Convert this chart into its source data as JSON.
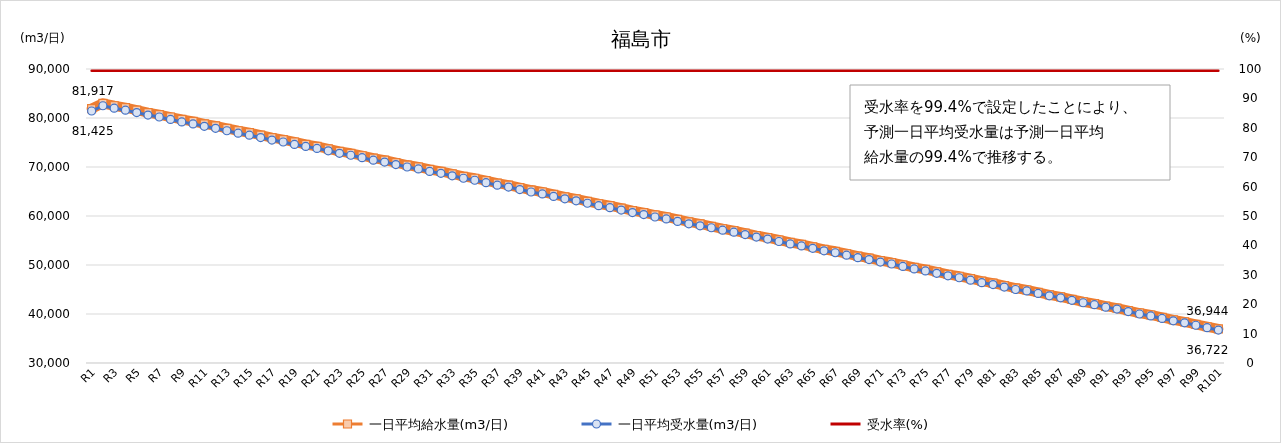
{
  "chart_data": {
    "type": "line",
    "title": "福島市",
    "ylabel": "(m3/日)",
    "y2label": "(%)",
    "annotations": [
      "受水率を99.4%で設定したことにより、予測一日平均受水量は予測一日平均給水量の99.4%で推移する。"
    ],
    "categories": [
      "R1",
      null,
      "R3",
      null,
      "R5",
      null,
      "R7",
      null,
      "R9",
      null,
      "R11",
      null,
      "R13",
      null,
      "R15",
      null,
      "R17",
      null,
      "R19",
      null,
      "R21",
      null,
      "R23",
      null,
      "R25",
      null,
      "R27",
      null,
      "R29",
      null,
      "R31",
      null,
      "R33",
      null,
      "R35",
      null,
      "R37",
      null,
      "R39",
      null,
      "R41",
      null,
      "R43",
      null,
      "R45",
      null,
      "R47",
      null,
      "R49",
      null,
      "R51",
      null,
      "R53",
      null,
      "R55",
      null,
      "R57",
      null,
      "R59",
      null,
      "R61",
      null,
      "R63",
      null,
      "R65",
      null,
      "R67",
      null,
      "R69",
      null,
      "R71",
      null,
      "R73",
      null,
      "R75",
      null,
      "R77",
      null,
      "R79",
      null,
      "R81",
      null,
      "R83",
      null,
      "R85",
      null,
      "R87",
      null,
      "R89",
      null,
      "R91",
      null,
      "R93",
      null,
      "R95",
      null,
      "R97",
      null,
      "R99",
      null,
      "R101"
    ],
    "ylim": [
      30000,
      90000
    ],
    "yticks": [
      {
        "value": 30000,
        "label": "30,000"
      },
      {
        "value": 40000,
        "label": "40,000"
      },
      {
        "value": 50000,
        "label": "50,000"
      },
      {
        "value": 60000,
        "label": "60,000"
      },
      {
        "value": 70000,
        "label": "70,000"
      },
      {
        "value": 80000,
        "label": "80,000"
      },
      {
        "value": 90000,
        "label": "90,000"
      }
    ],
    "y2lim": [
      0,
      100
    ],
    "y2ticks": [
      0,
      10,
      20,
      30,
      40,
      50,
      60,
      70,
      80,
      90,
      100
    ],
    "grid": "y",
    "legend": "bottom",
    "series": [
      {
        "name": "一日平均給水量(m3/日)",
        "color": "#ed7d31",
        "marker": "square",
        "values": [
          81917,
          83000,
          82500,
          82100,
          81600,
          81100,
          80700,
          80200,
          79700,
          79300,
          78800,
          78400,
          77900,
          77400,
          77000,
          76500,
          76000,
          75600,
          75100,
          74600,
          74200,
          73700,
          73200,
          72800,
          72300,
          71800,
          71400,
          70900,
          70400,
          70000,
          69500,
          69100,
          68600,
          68100,
          67700,
          67200,
          66700,
          66300,
          65800,
          65300,
          64900,
          64400,
          63900,
          63500,
          63000,
          62500,
          62100,
          61600,
          61100,
          60700,
          60200,
          59800,
          59300,
          58800,
          58400,
          57900,
          57400,
          57000,
          56500,
          56000,
          55600,
          55100,
          54600,
          54200,
          53700,
          53200,
          52800,
          52300,
          51800,
          51400,
          50900,
          50500,
          50000,
          49500,
          49100,
          48600,
          48100,
          47700,
          47200,
          46700,
          46300,
          45800,
          45300,
          44900,
          44400,
          43900,
          43500,
          43000,
          42500,
          42100,
          41600,
          41200,
          40700,
          40200,
          39800,
          39300,
          38800,
          38400,
          37900,
          37400,
          36944
        ],
        "value_labels": [
          "81,917",
          null,
          null,
          null,
          null,
          null,
          null,
          null,
          null,
          null,
          null,
          null,
          null,
          null,
          null,
          null,
          null,
          null,
          null,
          null,
          null,
          null,
          null,
          null,
          null,
          null,
          null,
          null,
          null,
          null,
          null,
          null,
          null,
          null,
          null,
          null,
          null,
          null,
          null,
          null,
          null,
          null,
          null,
          null,
          null,
          null,
          null,
          null,
          null,
          null,
          null,
          null,
          null,
          null,
          null,
          null,
          null,
          null,
          null,
          null,
          null,
          null,
          null,
          null,
          null,
          null,
          null,
          null,
          null,
          null,
          null,
          null,
          null,
          null,
          null,
          null,
          null,
          null,
          null,
          null,
          null,
          null,
          null,
          null,
          null,
          null,
          null,
          null,
          null,
          null,
          null,
          null,
          null,
          null,
          null,
          null,
          null,
          null,
          null,
          null,
          "36,944"
        ]
      },
      {
        "name": "一日平均受水量(m3/日)",
        "color": "#4472c4",
        "marker": "circle",
        "values": [
          81425,
          82500,
          82000,
          81600,
          81100,
          80600,
          80200,
          79700,
          79200,
          78800,
          78300,
          77900,
          77400,
          76900,
          76500,
          76000,
          75500,
          75100,
          74600,
          74200,
          73800,
          73300,
          72800,
          72400,
          71900,
          71400,
          71000,
          70500,
          70000,
          69600,
          69100,
          68700,
          68200,
          67700,
          67300,
          66800,
          66300,
          65900,
          65400,
          64900,
          64500,
          64000,
          63500,
          63100,
          62600,
          62100,
          61700,
          61200,
          60700,
          60300,
          59800,
          59400,
          58900,
          58400,
          58000,
          57600,
          57100,
          56700,
          56200,
          55700,
          55300,
          54800,
          54300,
          53900,
          53400,
          52900,
          52500,
          52000,
          51500,
          51100,
          50600,
          50200,
          49700,
          49200,
          48800,
          48300,
          47800,
          47400,
          46900,
          46400,
          46000,
          45500,
          45000,
          44700,
          44200,
          43700,
          43300,
          42800,
          42300,
          41900,
          41400,
          41000,
          40500,
          40000,
          39600,
          39100,
          38600,
          38200,
          37700,
          37200,
          36722
        ],
        "value_labels": [
          "81,425",
          null,
          null,
          null,
          null,
          null,
          null,
          null,
          null,
          null,
          null,
          null,
          null,
          null,
          null,
          null,
          null,
          null,
          null,
          null,
          null,
          null,
          null,
          null,
          null,
          null,
          null,
          null,
          null,
          null,
          null,
          null,
          null,
          null,
          null,
          null,
          null,
          null,
          null,
          null,
          null,
          null,
          null,
          null,
          null,
          null,
          null,
          null,
          null,
          null,
          null,
          null,
          null,
          null,
          null,
          null,
          null,
          null,
          null,
          null,
          null,
          null,
          null,
          null,
          null,
          null,
          null,
          null,
          null,
          null,
          null,
          null,
          null,
          null,
          null,
          null,
          null,
          null,
          null,
          null,
          null,
          null,
          null,
          null,
          null,
          null,
          null,
          null,
          null,
          null,
          null,
          null,
          null,
          null,
          null,
          null,
          null,
          null,
          null,
          null,
          "36,722"
        ]
      },
      {
        "name": "受水率(%)",
        "color": "#c00000",
        "marker": "none",
        "axis": "y2",
        "values": [
          99.4,
          99.4,
          99.4,
          99.4,
          99.4,
          99.4,
          99.4,
          99.4,
          99.4,
          99.4,
          99.4,
          99.4,
          99.4,
          99.4,
          99.4,
          99.4,
          99.4,
          99.4,
          99.4,
          99.4,
          99.4,
          99.4,
          99.4,
          99.4,
          99.4,
          99.4,
          99.4,
          99.4,
          99.4,
          99.4,
          99.4,
          99.4,
          99.4,
          99.4,
          99.4,
          99.4,
          99.4,
          99.4,
          99.4,
          99.4,
          99.4,
          99.4,
          99.4,
          99.4,
          99.4,
          99.4,
          99.4,
          99.4,
          99.4,
          99.4,
          99.4,
          99.4,
          99.4,
          99.4,
          99.4,
          99.4,
          99.4,
          99.4,
          99.4,
          99.4,
          99.4,
          99.4,
          99.4,
          99.4,
          99.4,
          99.4,
          99.4,
          99.4,
          99.4,
          99.4,
          99.4,
          99.4,
          99.4,
          99.4,
          99.4,
          99.4,
          99.4,
          99.4,
          99.4,
          99.4,
          99.4,
          99.4,
          99.4,
          99.4,
          99.4,
          99.4,
          99.4,
          99.4,
          99.4,
          99.4,
          99.4,
          99.4,
          99.4,
          99.4,
          99.4,
          99.4,
          99.4,
          99.4,
          99.4,
          99.4,
          99.4
        ]
      }
    ]
  }
}
